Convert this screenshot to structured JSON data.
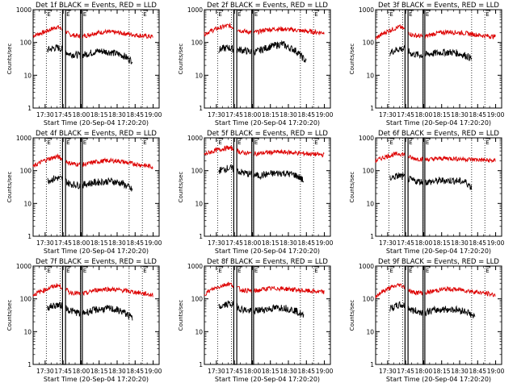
{
  "figure": {
    "panel_title_suffix": "BLACK = Events, RED = LLD",
    "xlabel": "Start Time (20-Sep-04 17:20:20)",
    "ylabel": "Counts/sec"
  },
  "axes": {
    "x_range_min": [
      0,
      105
    ],
    "x_ticks_min": [
      10,
      25,
      40,
      55,
      70,
      85,
      100
    ],
    "x_tick_labels": [
      "17:30",
      "17:45",
      "18:00",
      "18:15",
      "18:30",
      "18:45",
      "19:00"
    ],
    "y_range": [
      1,
      1000
    ],
    "y_scale": "log",
    "y_ticks": [
      1,
      10,
      100,
      1000
    ],
    "y_tick_labels": [
      "1",
      "10",
      "100",
      "1000"
    ]
  },
  "markers": {
    "flag_label": "E",
    "events": [
      {
        "start_min": 11,
        "end_min": 22.5
      },
      {
        "start_min": 27,
        "end_min": 39.5
      },
      {
        "start_min": 41,
        "end_min": 80
      },
      {
        "start_min": 91
      }
    ],
    "gaps": [
      {
        "start_min": 24.5,
        "end_min": 27
      },
      {
        "start_min": 39.5,
        "end_min": 41
      }
    ]
  },
  "colors": {
    "events": "#000000",
    "lld": "#dd0000",
    "axes": "#000000"
  },
  "chart_data": [
    {
      "type": "line",
      "title": "Det 1f",
      "x_range": [
        0,
        105
      ],
      "ylim": [
        1,
        1000
      ],
      "yscale": "log",
      "series": [
        {
          "name": "LLD",
          "color": "#dd0000",
          "x": [
            0,
            10,
            20,
            25,
            30,
            40,
            45,
            50,
            60,
            70,
            80,
            90,
            100
          ],
          "y": [
            160,
            210,
            300,
            250,
            175,
            150,
            165,
            190,
            210,
            200,
            180,
            160,
            150
          ]
        },
        {
          "name": "Events",
          "color": "#000000",
          "x": [
            12,
            20,
            25,
            30,
            40,
            45,
            55,
            65,
            75,
            80,
            83,
            85,
            90,
            95
          ],
          "y": [
            60,
            70,
            60,
            45,
            40,
            45,
            55,
            50,
            40,
            30,
            28,
            null,
            null,
            null
          ]
        }
      ]
    },
    {
      "type": "line",
      "title": "Det 2f",
      "x_range": [
        0,
        105
      ],
      "ylim": [
        1,
        1000
      ],
      "yscale": "log",
      "series": [
        {
          "name": "LLD",
          "color": "#dd0000",
          "x": [
            0,
            10,
            20,
            25,
            30,
            40,
            45,
            50,
            60,
            70,
            80,
            90,
            100
          ],
          "y": [
            180,
            260,
            330,
            280,
            230,
            200,
            210,
            240,
            260,
            250,
            230,
            210,
            200
          ]
        },
        {
          "name": "Events",
          "color": "#000000",
          "x": [
            12,
            20,
            25,
            30,
            40,
            45,
            55,
            65,
            70,
            75,
            80,
            85,
            90,
            95
          ],
          "y": [
            60,
            70,
            60,
            60,
            50,
            55,
            75,
            90,
            70,
            60,
            40,
            25,
            null,
            null
          ]
        }
      ]
    },
    {
      "type": "line",
      "title": "Det 3f",
      "x_range": [
        0,
        105
      ],
      "ylim": [
        1,
        1000
      ],
      "yscale": "log",
      "series": [
        {
          "name": "LLD",
          "color": "#dd0000",
          "x": [
            0,
            10,
            20,
            25,
            30,
            40,
            45,
            50,
            60,
            70,
            80,
            90,
            100
          ],
          "y": [
            130,
            220,
            300,
            240,
            170,
            150,
            165,
            190,
            210,
            200,
            180,
            160,
            150
          ]
        },
        {
          "name": "Events",
          "color": "#000000",
          "x": [
            12,
            20,
            25,
            30,
            40,
            45,
            55,
            65,
            75,
            80,
            85,
            90,
            95
          ],
          "y": [
            50,
            65,
            60,
            45,
            40,
            45,
            50,
            50,
            40,
            32,
            null,
            null,
            null
          ]
        }
      ]
    },
    {
      "type": "line",
      "title": "Det 4f",
      "x_range": [
        0,
        105
      ],
      "ylim": [
        1,
        1000
      ],
      "yscale": "log",
      "series": [
        {
          "name": "LLD",
          "color": "#dd0000",
          "x": [
            0,
            10,
            20,
            25,
            30,
            40,
            45,
            50,
            60,
            70,
            80,
            90,
            100
          ],
          "y": [
            130,
            210,
            270,
            220,
            170,
            150,
            160,
            180,
            200,
            200,
            170,
            150,
            130
          ]
        },
        {
          "name": "Events",
          "color": "#000000",
          "x": [
            12,
            20,
            25,
            30,
            40,
            45,
            55,
            65,
            75,
            80,
            83,
            85,
            90,
            95
          ],
          "y": [
            50,
            60,
            55,
            40,
            35,
            40,
            45,
            48,
            40,
            30,
            25,
            null,
            null,
            null
          ]
        }
      ]
    },
    {
      "type": "line",
      "title": "Det 5f",
      "x_range": [
        0,
        105
      ],
      "ylim": [
        1,
        1000
      ],
      "yscale": "log",
      "series": [
        {
          "name": "LLD",
          "color": "#dd0000",
          "x": [
            0,
            10,
            20,
            25,
            30,
            40,
            45,
            50,
            60,
            70,
            80,
            90,
            100
          ],
          "y": [
            310,
            420,
            500,
            450,
            360,
            330,
            330,
            350,
            370,
            360,
            340,
            320,
            300
          ]
        },
        {
          "name": "Events",
          "color": "#000000",
          "x": [
            12,
            20,
            25,
            30,
            40,
            45,
            55,
            65,
            75,
            80,
            83,
            85,
            90,
            95
          ],
          "y": [
            100,
            120,
            110,
            90,
            75,
            70,
            80,
            85,
            75,
            60,
            45,
            null,
            null,
            null
          ]
        }
      ]
    },
    {
      "type": "line",
      "title": "Det 6f",
      "x_range": [
        0,
        105
      ],
      "ylim": [
        1,
        1000
      ],
      "yscale": "log",
      "series": [
        {
          "name": "LLD",
          "color": "#dd0000",
          "x": [
            0,
            10,
            20,
            25,
            30,
            40,
            45,
            50,
            60,
            70,
            80,
            90,
            100
          ],
          "y": [
            200,
            280,
            330,
            300,
            240,
            220,
            220,
            230,
            240,
            230,
            220,
            210,
            200
          ]
        },
        {
          "name": "Events",
          "color": "#000000",
          "x": [
            12,
            20,
            25,
            30,
            40,
            45,
            55,
            65,
            75,
            80,
            85,
            90,
            95
          ],
          "y": [
            60,
            70,
            60,
            50,
            45,
            45,
            50,
            50,
            45,
            30,
            null,
            null,
            null
          ]
        }
      ]
    },
    {
      "type": "line",
      "title": "Det 7f",
      "x_range": [
        0,
        105
      ],
      "ylim": [
        1,
        1000
      ],
      "yscale": "log",
      "series": [
        {
          "name": "LLD",
          "color": "#dd0000",
          "x": [
            0,
            10,
            20,
            25,
            30,
            40,
            45,
            50,
            60,
            70,
            80,
            90,
            100
          ],
          "y": [
            130,
            190,
            260,
            220,
            160,
            140,
            150,
            180,
            200,
            190,
            170,
            150,
            130
          ]
        },
        {
          "name": "Events",
          "color": "#000000",
          "x": [
            12,
            20,
            25,
            30,
            40,
            45,
            55,
            65,
            75,
            80,
            83,
            85,
            90,
            95
          ],
          "y": [
            55,
            65,
            60,
            45,
            35,
            40,
            48,
            50,
            40,
            30,
            25,
            null,
            null,
            null
          ]
        }
      ]
    },
    {
      "type": "line",
      "title": "Det 8f",
      "x_range": [
        0,
        105
      ],
      "ylim": [
        1,
        1000
      ],
      "yscale": "log",
      "series": [
        {
          "name": "LLD",
          "color": "#dd0000",
          "x": [
            0,
            10,
            20,
            25,
            30,
            40,
            45,
            50,
            60,
            70,
            80,
            90,
            100
          ],
          "y": [
            140,
            220,
            290,
            250,
            190,
            170,
            180,
            200,
            210,
            200,
            180,
            170,
            160
          ]
        },
        {
          "name": "Events",
          "color": "#000000",
          "x": [
            12,
            20,
            25,
            30,
            40,
            45,
            55,
            65,
            75,
            80,
            83,
            85,
            90,
            95
          ],
          "y": [
            55,
            70,
            65,
            50,
            40,
            45,
            50,
            55,
            45,
            35,
            28,
            null,
            null,
            null
          ]
        }
      ]
    },
    {
      "type": "line",
      "title": "Det 9f",
      "x_range": [
        0,
        105
      ],
      "ylim": [
        1,
        1000
      ],
      "yscale": "log",
      "series": [
        {
          "name": "LLD",
          "color": "#dd0000",
          "x": [
            0,
            10,
            20,
            25,
            30,
            40,
            45,
            50,
            60,
            70,
            80,
            90,
            100
          ],
          "y": [
            120,
            200,
            270,
            220,
            160,
            150,
            160,
            180,
            200,
            190,
            170,
            150,
            130
          ]
        },
        {
          "name": "Events",
          "color": "#000000",
          "x": [
            12,
            20,
            25,
            30,
            40,
            45,
            55,
            65,
            75,
            80,
            83,
            85,
            90,
            95
          ],
          "y": [
            50,
            65,
            60,
            45,
            38,
            42,
            48,
            48,
            42,
            32,
            26,
            null,
            null,
            null
          ]
        }
      ]
    }
  ]
}
